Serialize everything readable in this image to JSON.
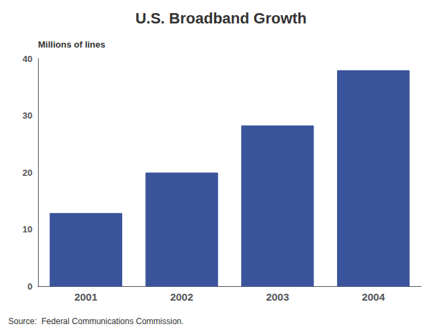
{
  "chart_data": {
    "type": "bar",
    "title": "U.S. Broadband Growth",
    "ylabel": "Millions of lines",
    "source": "Source:  Federal Communications Commission.",
    "categories": [
      "2001",
      "2002",
      "2003",
      "2004"
    ],
    "values": [
      12.8,
      19.9,
      28.2,
      37.9
    ],
    "color": "#3A549B",
    "ylim": [
      0,
      40
    ],
    "yticks": [
      0,
      10,
      20,
      30,
      40
    ],
    "grid": false
  }
}
